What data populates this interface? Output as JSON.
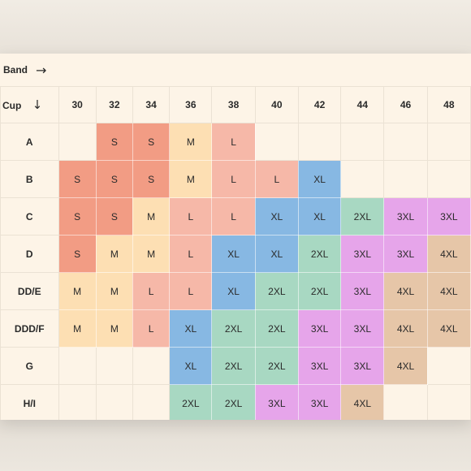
{
  "band_label": "Band",
  "cup_label": "Cup",
  "arrow_right": "→",
  "arrow_down": "↓",
  "bands": [
    "30",
    "32",
    "34",
    "36",
    "38",
    "40",
    "42",
    "44",
    "46",
    "48"
  ],
  "colors": {
    "S": "#f29c84",
    "M": "#fddfb3",
    "L": "#f6b8a8",
    "XL": "#87b8e3",
    "2XL": "#a8d8c2",
    "3XL": "#e6a5ea",
    "4XL": "#e6c6a8",
    "empty": "#fdf4e7"
  },
  "rows": [
    {
      "cup": "A",
      "sizes": [
        "",
        "S",
        "S",
        "M",
        "L",
        "",
        "",
        "",
        "",
        ""
      ]
    },
    {
      "cup": "B",
      "sizes": [
        "S",
        "S",
        "S",
        "M",
        "L",
        "L",
        "XL",
        "",
        "",
        ""
      ]
    },
    {
      "cup": "C",
      "sizes": [
        "S",
        "S",
        "M",
        "L",
        "L",
        "XL",
        "XL",
        "2XL",
        "3XL",
        "3XL"
      ]
    },
    {
      "cup": "D",
      "sizes": [
        "S",
        "M",
        "M",
        "L",
        "XL",
        "XL",
        "2XL",
        "3XL",
        "3XL",
        "4XL"
      ]
    },
    {
      "cup": "DD/E",
      "sizes": [
        "M",
        "M",
        "L",
        "L",
        "XL",
        "2XL",
        "2XL",
        "3XL",
        "4XL",
        "4XL"
      ]
    },
    {
      "cup": "DDD/F",
      "sizes": [
        "M",
        "M",
        "L",
        "XL",
        "2XL",
        "2XL",
        "3XL",
        "3XL",
        "4XL",
        "4XL"
      ]
    },
    {
      "cup": "G",
      "sizes": [
        "",
        "",
        "",
        "XL",
        "2XL",
        "2XL",
        "3XL",
        "3XL",
        "4XL",
        ""
      ]
    },
    {
      "cup": "H/I",
      "sizes": [
        "",
        "",
        "",
        "2XL",
        "2XL",
        "3XL",
        "3XL",
        "4XL",
        "",
        ""
      ]
    }
  ]
}
